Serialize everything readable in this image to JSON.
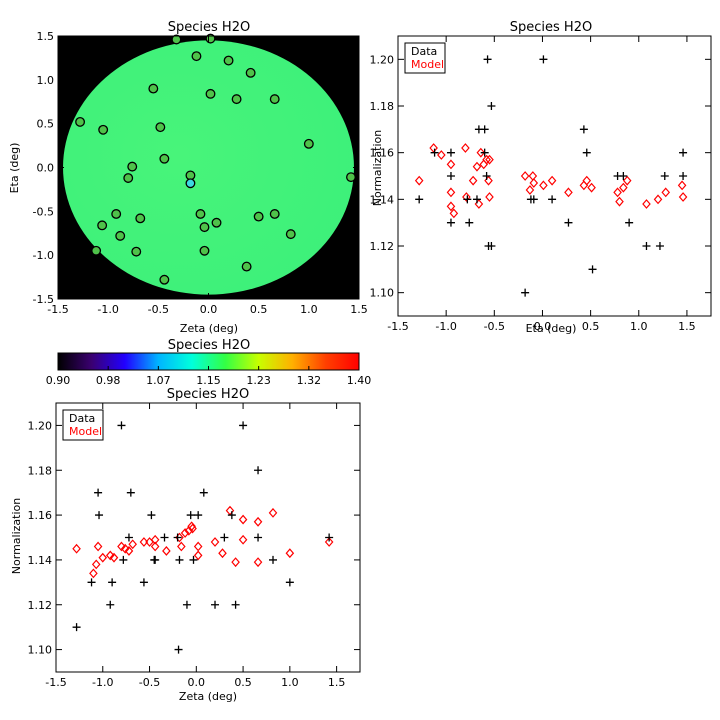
{
  "chart_data": [
    {
      "type": "scatter",
      "title": "Species H2O",
      "xlabel": "Zeta (deg)",
      "ylabel": "Eta (deg)",
      "xlim": [
        -1.5,
        1.5
      ],
      "ylim": [
        -1.5,
        1.5
      ],
      "xticks": [
        -1.5,
        -1.0,
        -0.5,
        0.0,
        0.5,
        1.0,
        1.5
      ],
      "xtick_labels": [
        "-1.5",
        "-1.0",
        "-0.5",
        "0.0",
        "0.5",
        "1.0",
        "1.5"
      ],
      "yticks": [
        -1.5,
        -1.0,
        -0.5,
        0.0,
        0.5,
        1.0,
        1.5
      ],
      "ytick_labels": [
        "-1.5",
        "-1.0",
        "-0.5",
        "0.0",
        "0.5",
        "1.0",
        "1.5"
      ],
      "background_color": "#000000",
      "field_color": "#3cf07a",
      "field_radius_deg": 1.45,
      "points": [
        {
          "x": -1.28,
          "y": 0.52
        },
        {
          "x": -1.05,
          "y": 0.43
        },
        {
          "x": -0.55,
          "y": 0.9
        },
        {
          "x": -0.32,
          "y": 1.46
        },
        {
          "x": -0.12,
          "y": 1.27
        },
        {
          "x": 0.02,
          "y": 1.47
        },
        {
          "x": 0.2,
          "y": 1.22
        },
        {
          "x": 0.42,
          "y": 1.08
        },
        {
          "x": 0.02,
          "y": 0.84
        },
        {
          "x": 0.28,
          "y": 0.78
        },
        {
          "x": 0.66,
          "y": 0.78
        },
        {
          "x": -0.48,
          "y": 0.46
        },
        {
          "x": -0.44,
          "y": 0.1
        },
        {
          "x": -0.76,
          "y": 0.01
        },
        {
          "x": -0.8,
          "y": -0.12
        },
        {
          "x": -0.18,
          "y": -0.09
        },
        {
          "x": -0.18,
          "y": -0.18
        },
        {
          "x": 1.0,
          "y": 0.27
        },
        {
          "x": 1.42,
          "y": -0.11
        },
        {
          "x": -1.06,
          "y": -0.66
        },
        {
          "x": -0.92,
          "y": -0.53
        },
        {
          "x": -0.68,
          "y": -0.58
        },
        {
          "x": -0.88,
          "y": -0.78
        },
        {
          "x": -0.72,
          "y": -0.96
        },
        {
          "x": -1.12,
          "y": -0.95
        },
        {
          "x": -0.08,
          "y": -0.53
        },
        {
          "x": -0.04,
          "y": -0.68
        },
        {
          "x": 0.08,
          "y": -0.63
        },
        {
          "x": -0.04,
          "y": -0.95
        },
        {
          "x": 0.5,
          "y": -0.56
        },
        {
          "x": 0.66,
          "y": -0.53
        },
        {
          "x": 0.82,
          "y": -0.76
        },
        {
          "x": 0.38,
          "y": -1.13
        },
        {
          "x": -0.44,
          "y": -1.28
        }
      ]
    },
    {
      "type": "colorbar",
      "title": "Species H2O",
      "range": [
        0.9,
        1.4
      ],
      "tick_labels": [
        "0.90",
        "0.98",
        "1.07",
        "1.15",
        "1.23",
        "1.32",
        "1.40"
      ],
      "colors": [
        "#000000",
        "#3a0070",
        "#2200ff",
        "#00b4ff",
        "#00ffdc",
        "#33ff44",
        "#c8ff00",
        "#ffb000",
        "#ff4000",
        "#ff0000"
      ]
    },
    {
      "type": "scatter",
      "title": "Species H2O",
      "xlabel": "Eta (deg)",
      "ylabel": "Normalization",
      "xlim": [
        -1.5,
        1.75
      ],
      "ylim": [
        1.09,
        1.21
      ],
      "xticks": [
        -1.5,
        -1.0,
        -0.5,
        0.0,
        0.5,
        1.0,
        1.5
      ],
      "xtick_labels": [
        "-1.5",
        "-1.0",
        "-0.5",
        "0.0",
        "0.5",
        "1.0",
        "1.5"
      ],
      "yticks": [
        1.1,
        1.12,
        1.14,
        1.16,
        1.18,
        1.2
      ],
      "ytick_labels": [
        "1.10",
        "1.12",
        "1.14",
        "1.16",
        "1.18",
        "1.20"
      ],
      "legend": [
        "Data",
        "Model"
      ],
      "legend_colors": [
        "#000000",
        "#ff0000"
      ],
      "legend_position": "top-left",
      "series": [
        {
          "name": "Data",
          "marker": "plus",
          "color": "#000000",
          "points": [
            {
              "x": -1.28,
              "y": 1.14
            },
            {
              "x": -1.12,
              "y": 1.16
            },
            {
              "x": -0.95,
              "y": 1.16
            },
            {
              "x": -0.95,
              "y": 1.15
            },
            {
              "x": -0.95,
              "y": 1.13
            },
            {
              "x": -0.78,
              "y": 1.14
            },
            {
              "x": -0.76,
              "y": 1.13
            },
            {
              "x": -0.68,
              "y": 1.14
            },
            {
              "x": -0.66,
              "y": 1.17
            },
            {
              "x": -0.6,
              "y": 1.17
            },
            {
              "x": -0.57,
              "y": 1.2
            },
            {
              "x": -0.53,
              "y": 1.18
            },
            {
              "x": -0.56,
              "y": 1.12
            },
            {
              "x": -0.53,
              "y": 1.12
            },
            {
              "x": -0.58,
              "y": 1.15
            },
            {
              "x": -0.6,
              "y": 1.16
            },
            {
              "x": -0.18,
              "y": 1.1
            },
            {
              "x": -0.12,
              "y": 1.14
            },
            {
              "x": -0.09,
              "y": 1.14
            },
            {
              "x": 0.01,
              "y": 1.2
            },
            {
              "x": 0.1,
              "y": 1.14
            },
            {
              "x": 0.27,
              "y": 1.13
            },
            {
              "x": 0.43,
              "y": 1.17
            },
            {
              "x": 0.46,
              "y": 1.16
            },
            {
              "x": 0.52,
              "y": 1.11
            },
            {
              "x": 0.78,
              "y": 1.15
            },
            {
              "x": 0.84,
              "y": 1.15
            },
            {
              "x": 0.9,
              "y": 1.13
            },
            {
              "x": 1.08,
              "y": 1.12
            },
            {
              "x": 1.22,
              "y": 1.12
            },
            {
              "x": 1.27,
              "y": 1.15
            },
            {
              "x": 1.46,
              "y": 1.16
            },
            {
              "x": 1.46,
              "y": 1.15
            }
          ]
        },
        {
          "name": "Model",
          "marker": "diamond",
          "color": "#ff0000",
          "points": [
            {
              "x": -1.28,
              "y": 1.148
            },
            {
              "x": -1.13,
              "y": 1.162
            },
            {
              "x": -1.05,
              "y": 1.159
            },
            {
              "x": -0.95,
              "y": 1.155
            },
            {
              "x": -0.95,
              "y": 1.143
            },
            {
              "x": -0.95,
              "y": 1.137
            },
            {
              "x": -0.92,
              "y": 1.134
            },
            {
              "x": -0.8,
              "y": 1.162
            },
            {
              "x": -0.79,
              "y": 1.141
            },
            {
              "x": -0.72,
              "y": 1.148
            },
            {
              "x": -0.68,
              "y": 1.154
            },
            {
              "x": -0.66,
              "y": 1.138
            },
            {
              "x": -0.64,
              "y": 1.16
            },
            {
              "x": -0.61,
              "y": 1.155
            },
            {
              "x": -0.58,
              "y": 1.157
            },
            {
              "x": -0.55,
              "y": 1.157
            },
            {
              "x": -0.56,
              "y": 1.148
            },
            {
              "x": -0.55,
              "y": 1.141
            },
            {
              "x": -0.18,
              "y": 1.15
            },
            {
              "x": -0.13,
              "y": 1.144
            },
            {
              "x": -0.1,
              "y": 1.15
            },
            {
              "x": -0.09,
              "y": 1.147
            },
            {
              "x": 0.01,
              "y": 1.146
            },
            {
              "x": 0.1,
              "y": 1.148
            },
            {
              "x": 0.27,
              "y": 1.143
            },
            {
              "x": 0.43,
              "y": 1.146
            },
            {
              "x": 0.46,
              "y": 1.148
            },
            {
              "x": 0.51,
              "y": 1.145
            },
            {
              "x": 0.78,
              "y": 1.143
            },
            {
              "x": 0.8,
              "y": 1.139
            },
            {
              "x": 0.84,
              "y": 1.145
            },
            {
              "x": 0.88,
              "y": 1.148
            },
            {
              "x": 1.08,
              "y": 1.138
            },
            {
              "x": 1.2,
              "y": 1.14
            },
            {
              "x": 1.28,
              "y": 1.143
            },
            {
              "x": 1.45,
              "y": 1.146
            },
            {
              "x": 1.46,
              "y": 1.141
            }
          ]
        }
      ]
    },
    {
      "type": "scatter",
      "title": "Species H2O",
      "xlabel": "Zeta (deg)",
      "ylabel": "Normalization",
      "xlim": [
        -1.5,
        1.75
      ],
      "ylim": [
        1.09,
        1.21
      ],
      "xticks": [
        -1.5,
        -1.0,
        -0.5,
        0.0,
        0.5,
        1.0,
        1.5
      ],
      "xtick_labels": [
        "-1.5",
        "-1.0",
        "-0.5",
        "0.0",
        "0.5",
        "1.0",
        "1.5"
      ],
      "yticks": [
        1.1,
        1.12,
        1.14,
        1.16,
        1.18,
        1.2
      ],
      "ytick_labels": [
        "1.10",
        "1.12",
        "1.14",
        "1.16",
        "1.18",
        "1.20"
      ],
      "legend": [
        "Data",
        "Model"
      ],
      "legend_colors": [
        "#000000",
        "#ff0000"
      ],
      "legend_position": "top-left",
      "series": [
        {
          "name": "Data",
          "marker": "plus",
          "color": "#000000",
          "points": [
            {
              "x": -1.28,
              "y": 1.11
            },
            {
              "x": -1.12,
              "y": 1.13
            },
            {
              "x": -1.05,
              "y": 1.17
            },
            {
              "x": -1.04,
              "y": 1.16
            },
            {
              "x": -0.92,
              "y": 1.12
            },
            {
              "x": -0.9,
              "y": 1.13
            },
            {
              "x": -0.8,
              "y": 1.2
            },
            {
              "x": -0.78,
              "y": 1.14
            },
            {
              "x": -0.72,
              "y": 1.15
            },
            {
              "x": -0.7,
              "y": 1.17
            },
            {
              "x": -0.56,
              "y": 1.13
            },
            {
              "x": -0.48,
              "y": 1.16
            },
            {
              "x": -0.45,
              "y": 1.14
            },
            {
              "x": -0.44,
              "y": 1.14
            },
            {
              "x": -0.34,
              "y": 1.15
            },
            {
              "x": -0.2,
              "y": 1.15
            },
            {
              "x": -0.19,
              "y": 1.1
            },
            {
              "x": -0.18,
              "y": 1.14
            },
            {
              "x": -0.1,
              "y": 1.12
            },
            {
              "x": -0.06,
              "y": 1.16
            },
            {
              "x": -0.03,
              "y": 1.14
            },
            {
              "x": 0.02,
              "y": 1.16
            },
            {
              "x": 0.08,
              "y": 1.17
            },
            {
              "x": 0.2,
              "y": 1.12
            },
            {
              "x": 0.3,
              "y": 1.15
            },
            {
              "x": 0.38,
              "y": 1.16
            },
            {
              "x": 0.42,
              "y": 1.12
            },
            {
              "x": 0.5,
              "y": 1.2
            },
            {
              "x": 0.66,
              "y": 1.18
            },
            {
              "x": 0.66,
              "y": 1.15
            },
            {
              "x": 0.82,
              "y": 1.14
            },
            {
              "x": 1.0,
              "y": 1.13
            },
            {
              "x": 1.42,
              "y": 1.15
            }
          ]
        },
        {
          "name": "Model",
          "marker": "diamond",
          "color": "#ff0000",
          "points": [
            {
              "x": -1.28,
              "y": 1.145
            },
            {
              "x": -1.1,
              "y": 1.134
            },
            {
              "x": -1.07,
              "y": 1.138
            },
            {
              "x": -1.05,
              "y": 1.146
            },
            {
              "x": -1.0,
              "y": 1.141
            },
            {
              "x": -0.92,
              "y": 1.142
            },
            {
              "x": -0.88,
              "y": 1.141
            },
            {
              "x": -0.8,
              "y": 1.146
            },
            {
              "x": -0.76,
              "y": 1.145
            },
            {
              "x": -0.72,
              "y": 1.144
            },
            {
              "x": -0.68,
              "y": 1.147
            },
            {
              "x": -0.56,
              "y": 1.148
            },
            {
              "x": -0.5,
              "y": 1.148
            },
            {
              "x": -0.44,
              "y": 1.149
            },
            {
              "x": -0.44,
              "y": 1.146
            },
            {
              "x": -0.32,
              "y": 1.144
            },
            {
              "x": -0.18,
              "y": 1.15
            },
            {
              "x": -0.16,
              "y": 1.146
            },
            {
              "x": -0.12,
              "y": 1.152
            },
            {
              "x": -0.08,
              "y": 1.153
            },
            {
              "x": -0.05,
              "y": 1.155
            },
            {
              "x": -0.04,
              "y": 1.154
            },
            {
              "x": 0.02,
              "y": 1.146
            },
            {
              "x": 0.02,
              "y": 1.142
            },
            {
              "x": 0.2,
              "y": 1.148
            },
            {
              "x": 0.28,
              "y": 1.143
            },
            {
              "x": 0.36,
              "y": 1.162
            },
            {
              "x": 0.42,
              "y": 1.139
            },
            {
              "x": 0.5,
              "y": 1.158
            },
            {
              "x": 0.5,
              "y": 1.149
            },
            {
              "x": 0.66,
              "y": 1.157
            },
            {
              "x": 0.66,
              "y": 1.139
            },
            {
              "x": 0.82,
              "y": 1.161
            },
            {
              "x": 1.0,
              "y": 1.143
            },
            {
              "x": 1.42,
              "y": 1.148
            }
          ]
        }
      ]
    }
  ]
}
